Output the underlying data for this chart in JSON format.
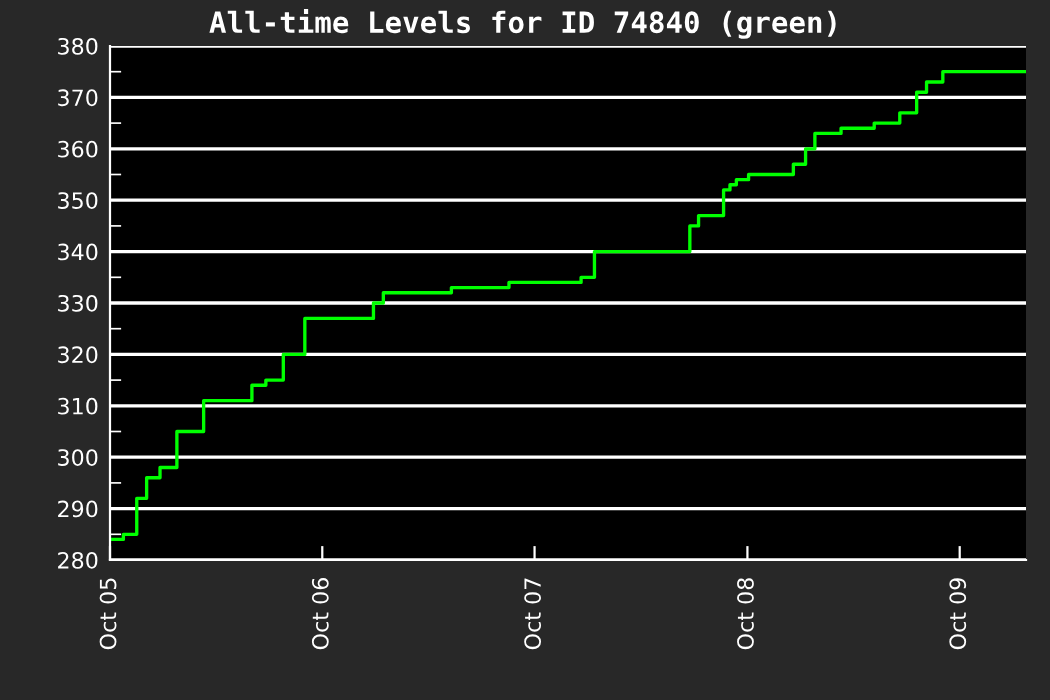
{
  "chart_data": {
    "type": "step",
    "title": "All-time Levels for ID 74840 (green)",
    "x": [
      "2005-10-01",
      "2005-10-24",
      "2005-11-16",
      "2005-12-03",
      "2005-12-26",
      "2006-01-24",
      "2006-03-11",
      "2006-05-20",
      "2006-06-02",
      "2006-06-26",
      "2006-07-26",
      "2006-09-01",
      "2006-12-14",
      "2006-12-28",
      "2007-01-14",
      "2007-05-10",
      "2007-05-11",
      "2007-08-17",
      "2007-08-18",
      "2007-12-18",
      "2007-12-20",
      "2008-01-12",
      "2008-06-08",
      "2008-06-24",
      "2008-07-09",
      "2008-08-04",
      "2008-08-21",
      "2008-09-01",
      "2008-09-12",
      "2008-10-03",
      "2008-12-07",
      "2008-12-19",
      "2009-01-09",
      "2009-01-25",
      "2009-03-10",
      "2009-03-11",
      "2009-05-06",
      "2009-05-07",
      "2009-06-10",
      "2009-06-20",
      "2009-07-19",
      "2009-08-05",
      "2009-09-02",
      "2010-01-23"
    ],
    "series": [
      {
        "color": "#00ff00",
        "values": [
          284,
          285,
          292,
          296,
          298,
          305,
          311,
          311,
          314,
          315,
          320,
          327,
          327,
          330,
          332,
          332,
          333,
          333,
          334,
          334,
          335,
          340,
          340,
          345,
          347,
          347,
          352,
          353,
          354,
          355,
          355,
          357,
          360,
          363,
          363,
          364,
          364,
          365,
          365,
          367,
          371,
          373,
          375,
          375
        ]
      }
    ],
    "xlim": [
      "2005-10-01",
      "2010-01-23"
    ],
    "xticks": [
      {
        "value": "2005-10-01",
        "label": "Oct 05"
      },
      {
        "value": "2006-10-01",
        "label": "Oct 06"
      },
      {
        "value": "2007-10-01",
        "label": "Oct 07"
      },
      {
        "value": "2008-10-01",
        "label": "Oct 08"
      },
      {
        "value": "2009-10-01",
        "label": "Oct 09"
      }
    ],
    "ylim": [
      280,
      380
    ],
    "yticks": [
      280,
      {
        "value": 285,
        "label": null
      },
      290,
      {
        "value": 295,
        "label": null
      },
      300,
      {
        "value": 305,
        "label": null
      },
      310,
      {
        "value": 315,
        "label": null
      },
      320,
      {
        "value": 325,
        "label": null
      },
      330,
      {
        "value": 335,
        "label": null
      },
      340,
      {
        "value": 345,
        "label": null
      },
      350,
      {
        "value": 355,
        "label": null
      },
      360,
      {
        "value": 365,
        "label": null
      },
      370,
      {
        "value": 375,
        "label": null
      },
      380
    ],
    "grid": "y",
    "line_style": "solid",
    "marker": "none"
  }
}
